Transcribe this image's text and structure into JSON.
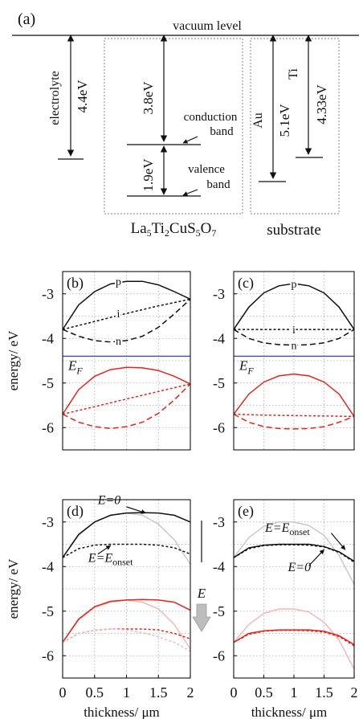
{
  "panel_a": {
    "label": "(a)",
    "vacuum": "vacuum level",
    "electrolyte": {
      "name": "electrolyte",
      "energy": "4.4eV"
    },
    "semiconductor": {
      "gap_top": "3.8eV",
      "gap_bottom": "1.9eV",
      "conduction": [
        "conduction",
        "band"
      ],
      "valence": [
        "valence",
        "band"
      ],
      "formula": {
        "La": "La",
        "n1": "5",
        "Ti": "Ti",
        "n2": "2",
        "CuS": "CuS",
        "n3": "5",
        "O": "O",
        "n4": "7"
      }
    },
    "substrate": {
      "name": "substrate",
      "au": "Au",
      "au_energy": "5.1eV",
      "ti": "Ti",
      "ti_energy": "4.33eV"
    }
  },
  "chart_data": [
    {
      "panel": "(b)",
      "type": "line",
      "ylabel": "energy/ eV",
      "xlabel": "",
      "xlim": [
        0,
        2
      ],
      "ylim": [
        -6.5,
        -2.5
      ],
      "yticks": [
        "-3",
        "-4",
        "-5",
        "-6"
      ],
      "ef_label": "E",
      "ef_sub": "F",
      "ef_value": -4.4,
      "curve_labels": [
        "p",
        "i",
        "n"
      ],
      "series": [
        {
          "color": "#111111",
          "style": "solid",
          "x": [
            0,
            0.25,
            0.5,
            0.75,
            1,
            1.25,
            1.5,
            1.75,
            2
          ],
          "y": [
            -3.8,
            -3.25,
            -2.95,
            -2.78,
            -2.72,
            -2.72,
            -2.8,
            -2.95,
            -3.12
          ]
        },
        {
          "color": "#111111",
          "style": "dotted",
          "x": [
            0,
            0.5,
            1,
            1.5,
            2
          ],
          "y": [
            -3.8,
            -3.62,
            -3.44,
            -3.27,
            -3.12
          ]
        },
        {
          "color": "#111111",
          "style": "dashed",
          "x": [
            0,
            0.25,
            0.5,
            0.75,
            1,
            1.25,
            1.5,
            1.75,
            2
          ],
          "y": [
            -3.8,
            -3.95,
            -4.05,
            -4.08,
            -4.05,
            -3.95,
            -3.75,
            -3.45,
            -3.12
          ]
        },
        {
          "color": "#e0261e",
          "style": "solid",
          "x": [
            0,
            0.25,
            0.5,
            0.75,
            1,
            1.25,
            1.5,
            1.75,
            2
          ],
          "y": [
            -5.7,
            -5.15,
            -4.85,
            -4.7,
            -4.65,
            -4.66,
            -4.72,
            -4.85,
            -5.02
          ]
        },
        {
          "color": "#e0261e",
          "style": "dotted",
          "x": [
            0,
            0.5,
            1,
            1.5,
            2
          ],
          "y": [
            -5.7,
            -5.53,
            -5.36,
            -5.19,
            -5.02
          ]
        },
        {
          "color": "#e0261e",
          "style": "dashed",
          "x": [
            0,
            0.25,
            0.5,
            0.75,
            1,
            1.25,
            1.5,
            1.75,
            2
          ],
          "y": [
            -5.7,
            -5.88,
            -5.98,
            -6.02,
            -5.98,
            -5.88,
            -5.68,
            -5.38,
            -5.02
          ]
        }
      ]
    },
    {
      "panel": "(c)",
      "type": "line",
      "ylabel": "",
      "xlabel": "",
      "xlim": [
        0,
        2
      ],
      "ylim": [
        -6.5,
        -2.5
      ],
      "yticks": [
        "-3",
        "-4",
        "-5",
        "-6"
      ],
      "ef_label": "E",
      "ef_sub": "F",
      "ef_value": -4.4,
      "curve_labels": [
        "p",
        "i",
        "n"
      ],
      "series": [
        {
          "color": "#111111",
          "style": "solid",
          "x": [
            0,
            0.25,
            0.5,
            0.75,
            1,
            1.25,
            1.5,
            1.75,
            2
          ],
          "y": [
            -3.8,
            -3.3,
            -2.98,
            -2.82,
            -2.77,
            -2.82,
            -2.98,
            -3.3,
            -3.8
          ]
        },
        {
          "color": "#111111",
          "style": "dotted",
          "x": [
            0,
            0.5,
            1,
            1.5,
            2
          ],
          "y": [
            -3.8,
            -3.8,
            -3.8,
            -3.8,
            -3.8
          ]
        },
        {
          "color": "#111111",
          "style": "dashed",
          "x": [
            0,
            0.25,
            0.5,
            0.75,
            1,
            1.25,
            1.5,
            1.75,
            2
          ],
          "y": [
            -3.8,
            -4.0,
            -4.1,
            -4.14,
            -4.15,
            -4.14,
            -4.1,
            -4.0,
            -3.8
          ]
        },
        {
          "color": "#e0261e",
          "style": "solid",
          "x": [
            0,
            0.25,
            0.5,
            0.75,
            1,
            1.25,
            1.5,
            1.75,
            2
          ],
          "y": [
            -5.7,
            -5.25,
            -4.98,
            -4.84,
            -4.8,
            -4.84,
            -4.98,
            -5.25,
            -5.75
          ]
        },
        {
          "color": "#e0261e",
          "style": "dotted",
          "x": [
            0,
            0.5,
            1,
            1.5,
            2
          ],
          "y": [
            -5.7,
            -5.72,
            -5.73,
            -5.74,
            -5.75
          ]
        },
        {
          "color": "#e0261e",
          "style": "dashed",
          "x": [
            0,
            0.25,
            0.5,
            0.75,
            1,
            1.25,
            1.5,
            1.75,
            2
          ],
          "y": [
            -5.7,
            -5.88,
            -5.98,
            -6.02,
            -6.03,
            -6.02,
            -5.98,
            -5.88,
            -5.75
          ]
        }
      ]
    },
    {
      "panel": "(d)",
      "type": "line",
      "ylabel": "energy/ eV",
      "xlabel": "thickness/ μm",
      "xlim": [
        0,
        2
      ],
      "ylim": [
        -6.5,
        -2.5
      ],
      "yticks": [
        "-3",
        "-4",
        "-5",
        "-6"
      ],
      "xticks": [
        "0",
        "0.5",
        "1",
        "1.5",
        "2"
      ],
      "annotations": {
        "e0": "E=0",
        "eons_main": "E=E",
        "eons_sub": "onset",
        "field": "E"
      },
      "series": [
        {
          "color": "#c9c9c9",
          "style": "solid",
          "x": [
            0,
            0.25,
            0.5,
            0.75,
            1,
            1.25,
            1.5,
            1.75,
            2
          ],
          "y": [
            -3.8,
            -3.3,
            -3.0,
            -2.85,
            -2.8,
            -2.85,
            -3.05,
            -3.4,
            -3.95
          ]
        },
        {
          "color": "#111111",
          "style": "solid",
          "x": [
            0,
            0.25,
            0.5,
            0.75,
            1,
            1.25,
            1.5,
            1.75,
            2
          ],
          "y": [
            -3.8,
            -3.28,
            -3.0,
            -2.85,
            -2.8,
            -2.79,
            -2.8,
            -2.85,
            -3.0
          ]
        },
        {
          "color": "#111111",
          "style": "dotted",
          "x": [
            0,
            0.25,
            0.5,
            0.75,
            1,
            1.25,
            1.5,
            1.75,
            2
          ],
          "y": [
            -3.8,
            -3.6,
            -3.52,
            -3.5,
            -3.5,
            -3.5,
            -3.52,
            -3.58,
            -3.72
          ]
        },
        {
          "color": "#f2b8b8",
          "style": "solid",
          "x": [
            0,
            0.25,
            0.5,
            0.75,
            1,
            1.25,
            1.5,
            1.75,
            2
          ],
          "y": [
            -5.7,
            -5.2,
            -4.92,
            -4.8,
            -4.75,
            -4.8,
            -4.95,
            -5.3,
            -5.85
          ]
        },
        {
          "color": "#e0261e",
          "style": "solid",
          "x": [
            0,
            0.25,
            0.5,
            0.75,
            1,
            1.25,
            1.5,
            1.75,
            2
          ],
          "y": [
            -5.7,
            -5.18,
            -4.9,
            -4.78,
            -4.75,
            -4.74,
            -4.75,
            -4.8,
            -4.98
          ]
        },
        {
          "color": "#e0261e",
          "style": "dotted",
          "x": [
            0,
            0.25,
            0.5,
            0.75,
            1,
            1.25,
            1.5,
            1.75,
            2
          ],
          "y": [
            -5.7,
            -5.5,
            -5.43,
            -5.4,
            -5.4,
            -5.4,
            -5.42,
            -5.5,
            -5.62
          ]
        },
        {
          "color": "#f2b8b8",
          "style": "dotted",
          "x": [
            0,
            0.25,
            0.5,
            0.75,
            1,
            1.25,
            1.5,
            1.75,
            2
          ],
          "y": [
            -5.7,
            -5.5,
            -5.43,
            -5.4,
            -5.42,
            -5.48,
            -5.58,
            -5.7,
            -5.9
          ]
        }
      ]
    },
    {
      "panel": "(e)",
      "type": "line",
      "ylabel": "",
      "xlabel": "thickness/ μm",
      "xlim": [
        0,
        2
      ],
      "ylim": [
        -6.5,
        -2.5
      ],
      "yticks": [
        "-3",
        "-4",
        "-5",
        "-6"
      ],
      "xticks": [
        "0",
        "0.5",
        "1",
        "1.5",
        "2"
      ],
      "annotations": {
        "eons_main": "E=E",
        "eons_sub": "onset",
        "e0": "E=0"
      },
      "series": [
        {
          "color": "#c9c9c9",
          "style": "solid",
          "x": [
            0,
            0.25,
            0.5,
            0.75,
            1,
            1.25,
            1.5,
            1.75,
            2
          ],
          "y": [
            -3.8,
            -3.35,
            -3.1,
            -3.0,
            -3.0,
            -3.08,
            -3.3,
            -3.75,
            -4.4
          ]
        },
        {
          "color": "#111111",
          "style": "solid",
          "x": [
            0,
            0.25,
            0.5,
            0.75,
            1,
            1.25,
            1.5,
            1.75,
            2
          ],
          "y": [
            -3.8,
            -3.58,
            -3.52,
            -3.5,
            -3.5,
            -3.5,
            -3.55,
            -3.67,
            -3.88
          ]
        },
        {
          "color": "#111111",
          "style": "dotted",
          "x": [
            0,
            0.25,
            0.5,
            0.75,
            1,
            1.25,
            1.5,
            1.75,
            2
          ],
          "y": [
            -3.8,
            -3.6,
            -3.53,
            -3.51,
            -3.51,
            -3.52,
            -3.56,
            -3.68,
            -3.9
          ]
        },
        {
          "color": "#f2b8b8",
          "style": "solid",
          "x": [
            0,
            0.25,
            0.5,
            0.75,
            1,
            1.25,
            1.5,
            1.75,
            2
          ],
          "y": [
            -5.7,
            -5.3,
            -5.05,
            -4.95,
            -4.95,
            -5.02,
            -5.25,
            -5.65,
            -6.3
          ]
        },
        {
          "color": "#e0261e",
          "style": "solid",
          "x": [
            0,
            0.25,
            0.5,
            0.75,
            1,
            1.25,
            1.5,
            1.75,
            2
          ],
          "y": [
            -5.7,
            -5.5,
            -5.44,
            -5.42,
            -5.42,
            -5.42,
            -5.45,
            -5.55,
            -5.75
          ]
        },
        {
          "color": "#e0261e",
          "style": "dotted",
          "x": [
            0,
            0.25,
            0.5,
            0.75,
            1,
            1.25,
            1.5,
            1.75,
            2
          ],
          "y": [
            -5.7,
            -5.52,
            -5.45,
            -5.43,
            -5.43,
            -5.44,
            -5.47,
            -5.57,
            -5.78
          ]
        }
      ]
    }
  ]
}
